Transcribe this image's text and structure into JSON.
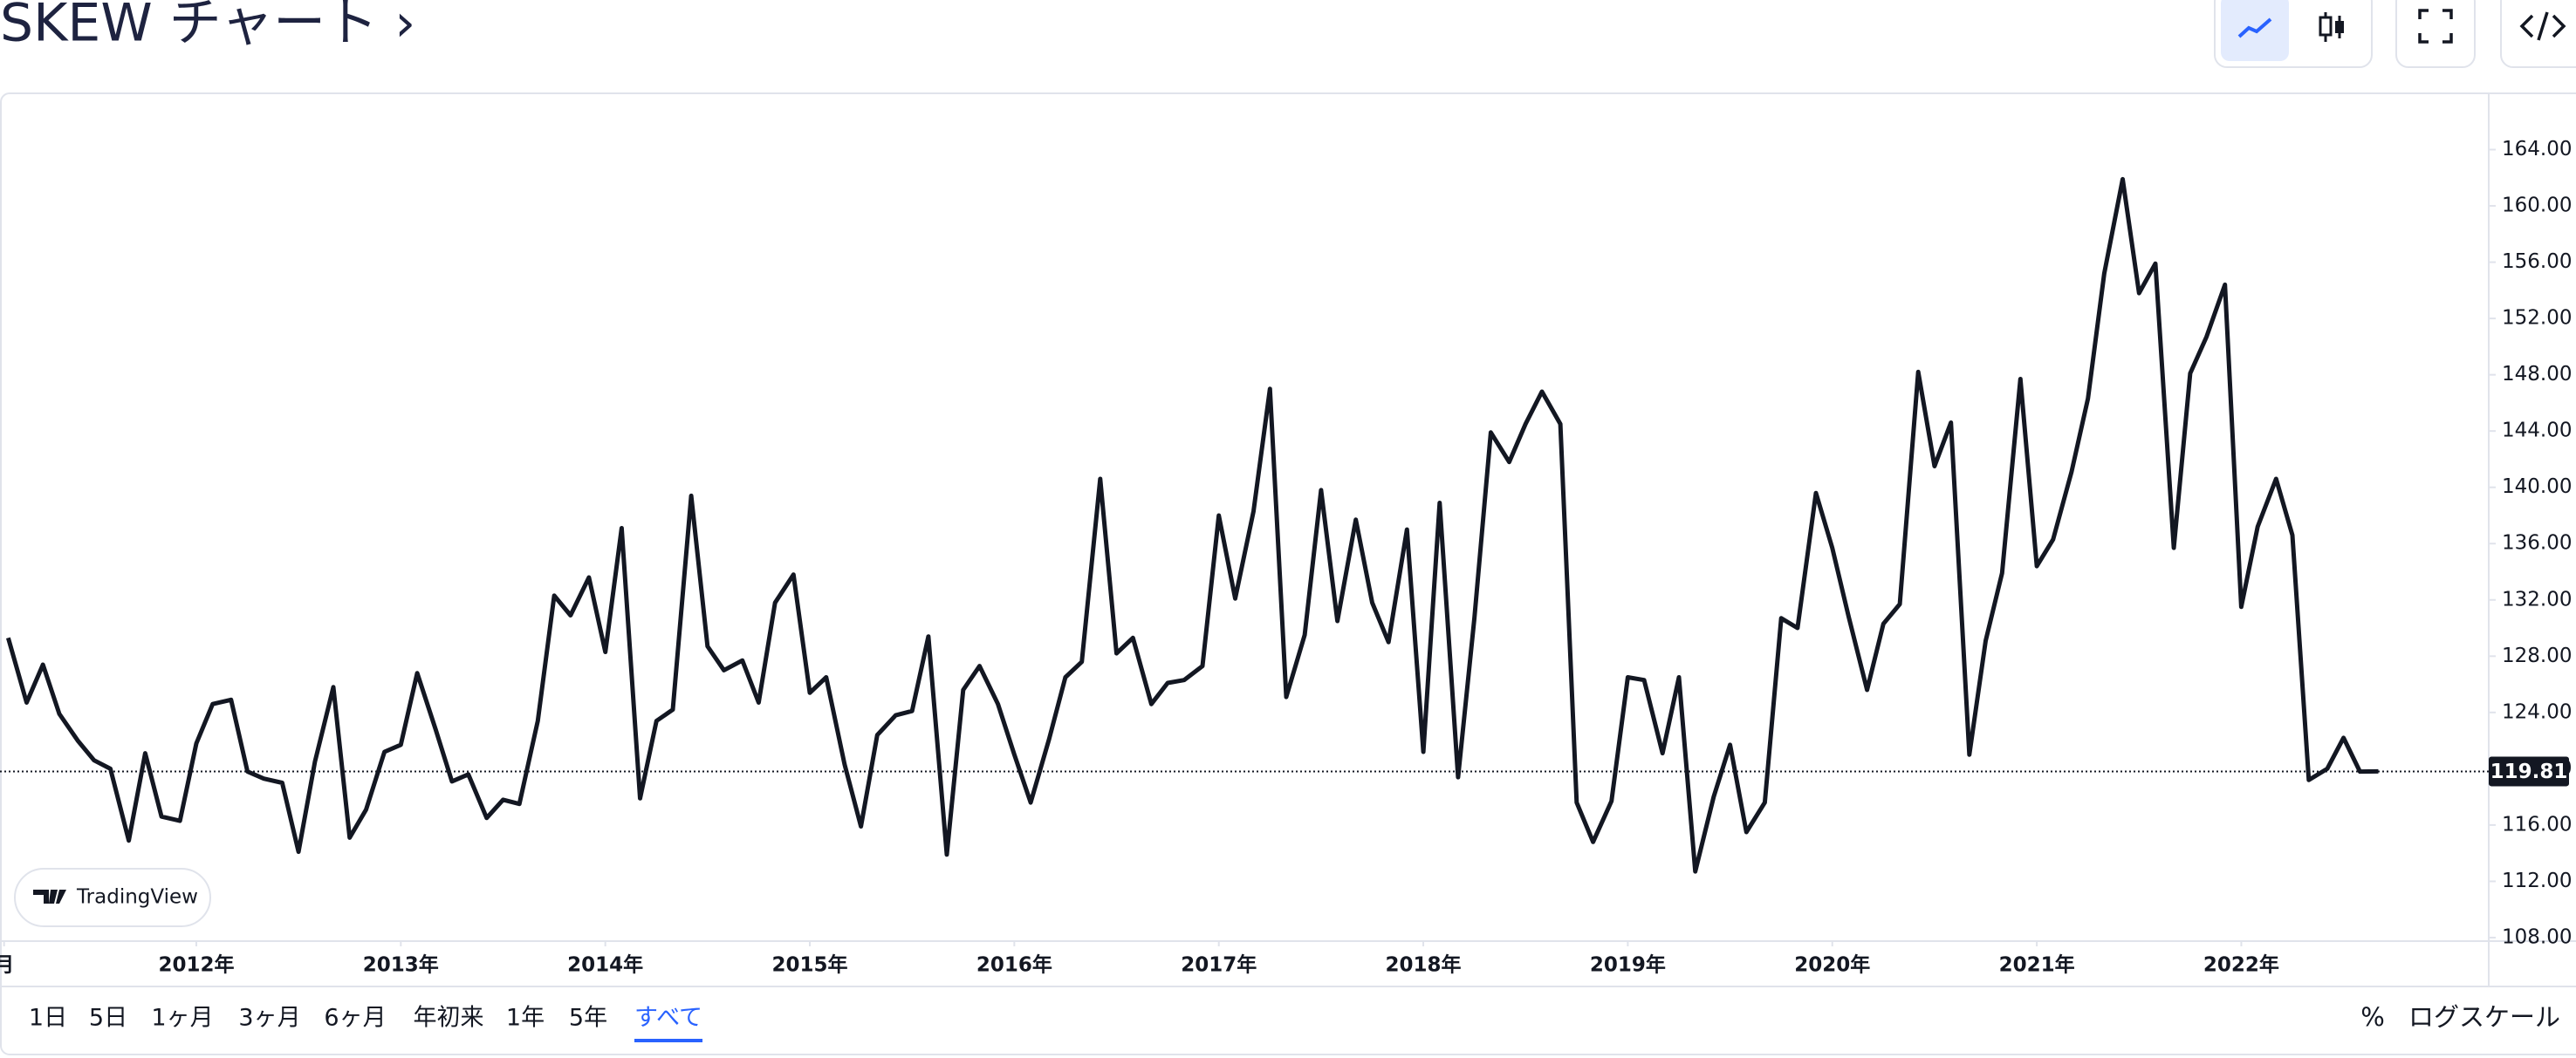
{
  "header": {
    "title": "SKEW チャート ›"
  },
  "chart_data": {
    "type": "line",
    "x": [
      2011.08,
      2011.17,
      2011.25,
      2011.33,
      2011.42,
      2011.5,
      2011.58,
      2011.67,
      2011.75,
      2011.83,
      2011.92,
      2012,
      2012.08,
      2012.17,
      2012.25,
      2012.33,
      2012.42,
      2012.5,
      2012.58,
      2012.67,
      2012.75,
      2012.83,
      2012.92,
      2013,
      2013.08,
      2013.17,
      2013.25,
      2013.33,
      2013.42,
      2013.5,
      2013.58,
      2013.67,
      2013.75,
      2013.83,
      2013.92,
      2014,
      2014.08,
      2014.17,
      2014.25,
      2014.33,
      2014.42,
      2014.5,
      2014.58,
      2014.67,
      2014.75,
      2014.83,
      2014.92,
      2015,
      2015.08,
      2015.17,
      2015.25,
      2015.33,
      2015.42,
      2015.5,
      2015.58,
      2015.67,
      2015.75,
      2015.83,
      2015.92,
      2016,
      2016.08,
      2016.17,
      2016.25,
      2016.33,
      2016.42,
      2016.5,
      2016.58,
      2016.67,
      2016.75,
      2016.83,
      2016.92,
      2017,
      2017.08,
      2017.17,
      2017.25,
      2017.33,
      2017.42,
      2017.5,
      2017.58,
      2017.67,
      2017.75,
      2017.83,
      2017.92,
      2018,
      2018.08,
      2018.17,
      2018.25,
      2018.33,
      2018.42,
      2018.5,
      2018.58,
      2018.67,
      2018.75,
      2018.83,
      2018.92,
      2019,
      2019.08,
      2019.17,
      2019.25,
      2019.33,
      2019.42,
      2019.5,
      2019.58,
      2019.67,
      2019.75,
      2019.83,
      2019.92,
      2020,
      2020.08,
      2020.17,
      2020.25,
      2020.33,
      2020.42,
      2020.5,
      2020.58,
      2020.67,
      2020.75,
      2020.83,
      2020.92,
      2021,
      2021.08,
      2021.17,
      2021.25,
      2021.33,
      2021.42,
      2021.5,
      2021.58,
      2021.67,
      2021.75,
      2021.83,
      2021.92,
      2022,
      2022.08,
      2022.17,
      2022.25,
      2022.33,
      2022.42,
      2022.5,
      2022.58,
      2022.67
    ],
    "series": [
      {
        "name": "SKEW",
        "color": "#131722",
        "values": [
          129.3,
          124.7,
          127.4,
          123.9,
          122.0,
          120.6,
          120.0,
          114.9,
          121.1,
          116.6,
          116.3,
          121.8,
          124.6,
          124.9,
          119.8,
          119.3,
          119.0,
          114.1,
          120.5,
          125.8,
          115.1,
          117.1,
          121.2,
          121.7,
          126.8,
          122.8,
          119.1,
          119.6,
          116.5,
          117.8,
          117.5,
          123.4,
          132.3,
          130.9,
          133.6,
          128.3,
          137.1,
          117.9,
          123.4,
          124.2,
          139.4,
          128.7,
          127.0,
          127.7,
          124.7,
          131.8,
          133.8,
          125.4,
          126.5,
          120.3,
          115.9,
          122.4,
          123.8,
          124.1,
          129.4,
          113.9,
          125.6,
          127.3,
          124.6,
          121.0,
          117.6,
          122.1,
          126.5,
          127.6,
          140.6,
          128.2,
          129.3,
          124.6,
          126.1,
          126.3,
          127.3,
          138.0,
          132.1,
          138.3,
          147.0,
          125.1,
          129.5,
          139.8,
          130.5,
          137.7,
          131.8,
          129.0,
          137.0,
          121.2,
          138.9,
          119.4,
          130.7,
          143.9,
          141.8,
          144.5,
          146.8,
          144.5,
          117.6,
          114.8,
          117.7,
          126.5,
          126.3,
          121.1,
          126.5,
          112.7,
          118.0,
          121.7,
          115.5,
          117.6,
          130.7,
          130.0,
          139.6,
          135.7,
          130.8,
          125.6,
          130.3,
          131.7,
          148.2,
          141.5,
          144.6,
          121.0,
          129.1,
          133.9,
          147.7,
          134.4,
          136.3,
          141.1,
          146.3,
          155.2,
          161.9,
          153.8,
          155.9,
          135.7,
          148.1,
          150.7,
          154.4,
          131.5,
          137.2,
          140.6,
          136.6,
          119.2,
          120.0,
          122.2,
          119.8,
          119.81
        ]
      }
    ],
    "last_price": 119.81,
    "xlim": [
      2011.04,
      2023.21
    ],
    "xticks": [
      {
        "value": 2011.06,
        "label": "月"
      },
      {
        "value": 2012,
        "label": "2012年"
      },
      {
        "value": 2013,
        "label": "2013年"
      },
      {
        "value": 2014,
        "label": "2014年"
      },
      {
        "value": 2015,
        "label": "2015年"
      },
      {
        "value": 2016,
        "label": "2016年"
      },
      {
        "value": 2017,
        "label": "2017年"
      },
      {
        "value": 2018,
        "label": "2018年"
      },
      {
        "value": 2019,
        "label": "2019年"
      },
      {
        "value": 2020,
        "label": "2020年"
      },
      {
        "value": 2021,
        "label": "2021年"
      },
      {
        "value": 2022,
        "label": "2022年"
      }
    ],
    "ylim": [
      107.75,
      168
    ],
    "yticks": [
      {
        "value": 108,
        "label": "108.00"
      },
      {
        "value": 112,
        "label": "112.00"
      },
      {
        "value": 116,
        "label": "116.00"
      },
      {
        "value": 120,
        "label": "120.00"
      },
      {
        "value": 124,
        "label": "124.00"
      },
      {
        "value": 128,
        "label": "128.00"
      },
      {
        "value": 132,
        "label": "132.00"
      },
      {
        "value": 136,
        "label": "136.00"
      },
      {
        "value": 140,
        "label": "140.00"
      },
      {
        "value": 144,
        "label": "144.00"
      },
      {
        "value": 148,
        "label": "148.00"
      },
      {
        "value": 152,
        "label": "152.00"
      },
      {
        "value": 156,
        "label": "156.00"
      },
      {
        "value": 160,
        "label": "160.00"
      },
      {
        "value": 164,
        "label": "164.00"
      }
    ],
    "grid": false
  },
  "watermark": "TradingView",
  "range_buttons": [
    "1日",
    "5日",
    "1ヶ月",
    "3ヶ月",
    "6ヶ月",
    "年初来",
    "1年",
    "5年",
    "すべて"
  ],
  "selected_range": 8,
  "scale_options": [
    "%",
    "ログスケール"
  ]
}
